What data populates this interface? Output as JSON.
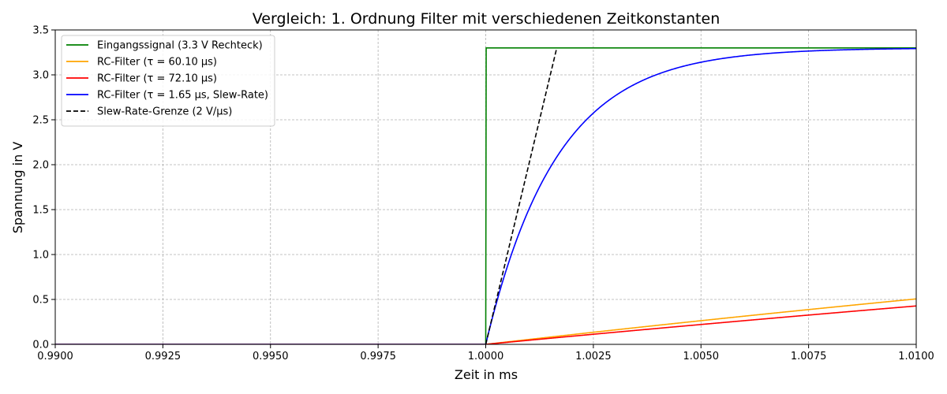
{
  "chart_data": {
    "type": "line",
    "title": "Vergleich: 1. Ordnung Filter mit verschiedenen Zeitkonstanten",
    "xlabel": "Zeit in ms",
    "ylabel": "Spannung in V",
    "xlim": [
      0.99,
      1.01
    ],
    "ylim": [
      0,
      3.5
    ],
    "x_ticks": [
      0.99,
      0.9925,
      0.995,
      0.9975,
      1.0,
      1.0025,
      1.005,
      1.0075,
      1.01
    ],
    "x_tick_labels": [
      "0.9900",
      "0.9925",
      "0.9950",
      "0.9975",
      "1.0000",
      "1.0025",
      "1.0050",
      "1.0075",
      "1.0100"
    ],
    "y_ticks": [
      0,
      0.5,
      1.0,
      1.5,
      2.0,
      2.5,
      3.0,
      3.5
    ],
    "y_tick_labels": [
      "0.0",
      "0.5",
      "1.0",
      "1.5",
      "2.0",
      "2.5",
      "3.0",
      "3.5"
    ],
    "grid": true,
    "legend_position": "top-left",
    "step_time_ms": 1.0,
    "amplitude_v": 3.3,
    "series": [
      {
        "name": "Eingangssignal (3.3 V Rechteck)",
        "kind": "step",
        "color": "#008000",
        "dash": "solid"
      },
      {
        "name": "RC-Filter (τ = 60.10 µs)",
        "kind": "rc",
        "tau_us": 60.1,
        "color": "#ffa500",
        "dash": "solid"
      },
      {
        "name": "RC-Filter (τ = 72.10 µs)",
        "kind": "rc",
        "tau_us": 72.1,
        "color": "#ff0000",
        "dash": "solid"
      },
      {
        "name": "RC-Filter (τ = 1.65 µs, Slew-Rate)",
        "kind": "rc",
        "tau_us": 1.65,
        "color": "#0000ff",
        "dash": "solid"
      },
      {
        "name": "Slew-Rate-Grenze (2 V/µs)",
        "kind": "ramp",
        "slope_v_per_us": 2.0,
        "color": "#000000",
        "dash": "dashed"
      }
    ]
  }
}
